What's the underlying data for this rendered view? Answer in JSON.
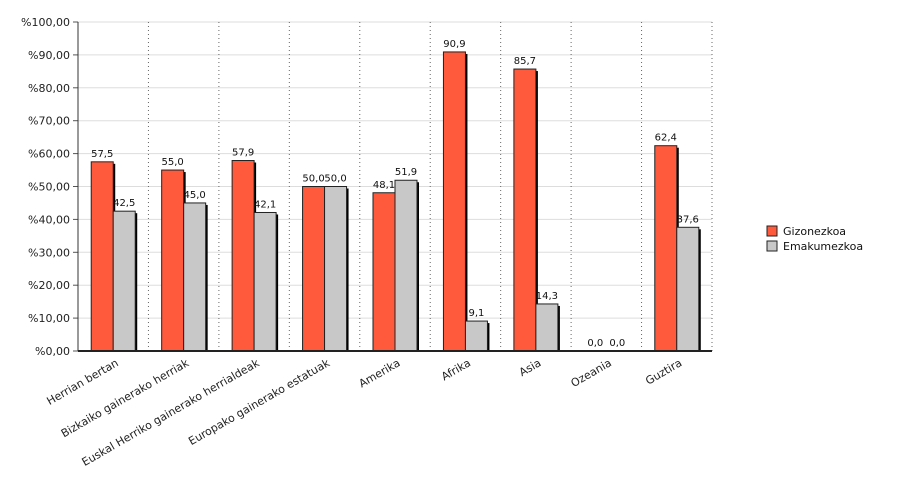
{
  "chart_data": {
    "type": "bar",
    "categories": [
      "Herrian bertan",
      "Bizkaiko gainerako herriak",
      "Euskal Herriko gainerako herrialdeak",
      "Europako gainerako estatuak",
      "Amerika",
      "Afrika",
      "Asia",
      "Ozeania",
      "Guztira"
    ],
    "series": [
      {
        "name": "Gizonezkoa",
        "color": "#ff5a3c",
        "values": [
          57.5,
          55.0,
          57.9,
          50.0,
          48.1,
          90.9,
          85.7,
          0.0,
          62.4
        ],
        "labels": [
          "57,5",
          "55,0",
          "57,9",
          "50,0",
          "48,1",
          "90,9",
          "85,7",
          "0,0",
          "62,4"
        ]
      },
      {
        "name": "Emakumezkoa",
        "color": "#c8c8c8",
        "values": [
          42.5,
          45.0,
          42.1,
          50.0,
          51.9,
          9.1,
          14.3,
          0.0,
          37.6
        ],
        "labels": [
          "42,5",
          "45,0",
          "42,1",
          "50,0",
          "51,9",
          "9,1",
          "14,3",
          "0,0",
          "37,6"
        ]
      }
    ],
    "ylim": [
      0,
      100
    ],
    "yticks": [
      {
        "value": 0,
        "label": "%0,00"
      },
      {
        "value": 10,
        "label": "%10,00"
      },
      {
        "value": 20,
        "label": "%20,00"
      },
      {
        "value": 30,
        "label": "%30,00"
      },
      {
        "value": 40,
        "label": "%40,00"
      },
      {
        "value": 50,
        "label": "%50,00"
      },
      {
        "value": 60,
        "label": "%60,00"
      },
      {
        "value": 70,
        "label": "%70,00"
      },
      {
        "value": 80,
        "label": "%80,00"
      },
      {
        "value": 90,
        "label": "%90,00"
      },
      {
        "value": 100,
        "label": "%100,00"
      }
    ],
    "grid": true,
    "legend": "right"
  }
}
